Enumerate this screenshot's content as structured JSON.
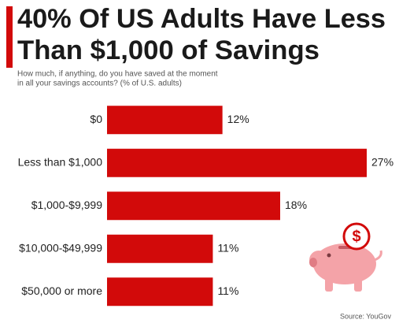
{
  "chart_data": {
    "type": "bar",
    "orientation": "horizontal",
    "title": [
      "40% Of US Adults Have Less",
      "Than $1,000 of Savings"
    ],
    "subtitle": [
      "How much, if anything, do you have saved at the moment",
      "in all your savings accounts? (% of U.S. adults)"
    ],
    "categories": [
      "$0",
      "Less than $1,000",
      "$1,000-$9,999",
      "$10,000-$49,999",
      "$50,000 or more"
    ],
    "values": [
      12,
      27,
      18,
      11,
      11
    ],
    "value_labels": [
      "12%",
      "27%",
      "18%",
      "11%",
      "11%"
    ],
    "color": "#d20a0a",
    "source": "Source: YouGov"
  }
}
